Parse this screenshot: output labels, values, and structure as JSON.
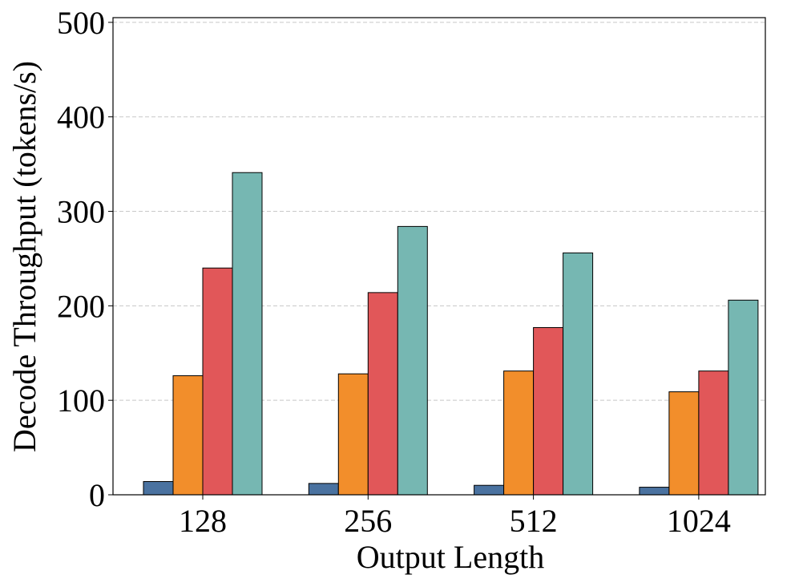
{
  "chart_data": {
    "type": "bar",
    "x_label": "Output Length",
    "y_label": "Decode Throughput (tokens/s)",
    "categories": [
      "128",
      "256",
      "512",
      "1024"
    ],
    "series": [
      {
        "color": "#4a72a0",
        "values": [
          14,
          12,
          10,
          8
        ]
      },
      {
        "color": "#f28e2b",
        "values": [
          126,
          128,
          131,
          109
        ]
      },
      {
        "color": "#e15759",
        "values": [
          240,
          214,
          177,
          131
        ]
      },
      {
        "color": "#76b7b2",
        "values": [
          341,
          284,
          256,
          206
        ]
      }
    ],
    "ylim": [
      0,
      505
    ],
    "yticks": [
      0,
      100,
      200,
      300,
      400,
      500
    ],
    "grid": true
  }
}
